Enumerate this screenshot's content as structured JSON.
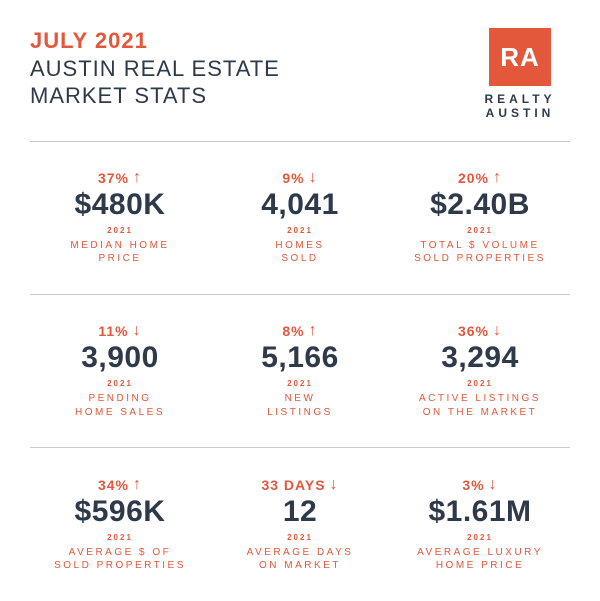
{
  "colors": {
    "accent": "#e3573b",
    "dark": "#2e3a4a",
    "divider": "#c9c9c9",
    "background": "#ffffff"
  },
  "header": {
    "month": "JULY 2021",
    "subtitle_line1": "AUSTIN REAL ESTATE",
    "subtitle_line2": "MARKET STATS",
    "logo_initials": "RA",
    "logo_line1": "REALTY",
    "logo_line2": "AUSTIN"
  },
  "year_label": "2021",
  "stats": [
    {
      "change": "37%",
      "direction": "up",
      "value": "$480K",
      "label": "MEDIAN HOME\nPRICE"
    },
    {
      "change": "9%",
      "direction": "down",
      "value": "4,041",
      "label": "HOMES\nSOLD"
    },
    {
      "change": "20%",
      "direction": "up",
      "value": "$2.40B",
      "label": "TOTAL $ VOLUME\nSOLD PROPERTIES"
    },
    {
      "change": "11%",
      "direction": "down",
      "value": "3,900",
      "label": "PENDING\nHOME SALES"
    },
    {
      "change": "8%",
      "direction": "up",
      "value": "5,166",
      "label": "NEW\nLISTINGS"
    },
    {
      "change": "36%",
      "direction": "down",
      "value": "3,294",
      "label": "ACTIVE LISTINGS\nON THE MARKET"
    },
    {
      "change": "34%",
      "direction": "up",
      "value": "$596K",
      "label": "AVERAGE $ OF\nSOLD PROPERTIES"
    },
    {
      "change": "33 DAYS",
      "direction": "down",
      "value": "12",
      "label": "AVERAGE DAYS\nON MARKET"
    },
    {
      "change": "3%",
      "direction": "down",
      "value": "$1.61M",
      "label": "AVERAGE LUXURY\nHOME PRICE"
    }
  ]
}
